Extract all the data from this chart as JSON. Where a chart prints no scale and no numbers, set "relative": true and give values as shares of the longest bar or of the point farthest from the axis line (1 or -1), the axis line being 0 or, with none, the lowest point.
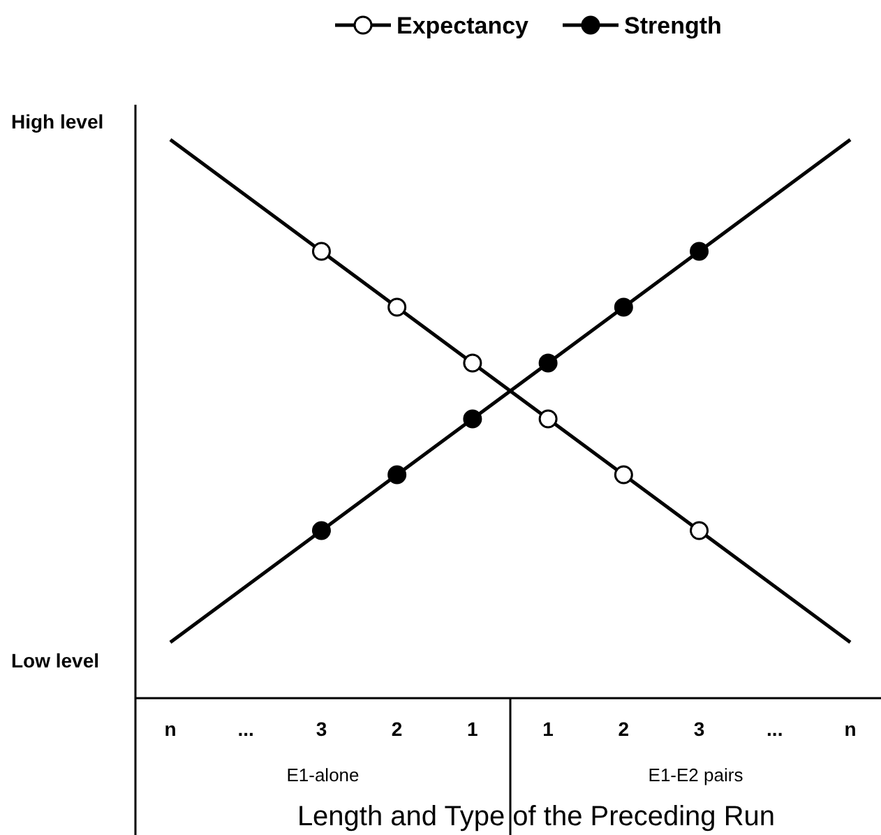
{
  "chart_data": {
    "type": "line",
    "xlabel": "Length and Type of the Preceding Run",
    "categories": [
      "n",
      "...",
      "3",
      "2",
      "1",
      "1",
      "2",
      "3",
      "...",
      "n"
    ],
    "series": [
      {
        "color": "#000000",
        "marker": "none",
        "values": [
          1,
          0.9,
          0.8,
          0.7,
          0.6,
          0.5,
          0.4,
          0.3,
          0.2,
          0.1
        ]
      },
      {
        "color": "#000000",
        "marker": "none",
        "values": [
          0.1,
          0.2,
          0.3,
          0.4,
          0.5,
          0.6,
          0.7,
          0.8,
          0.9,
          1
        ]
      },
      {
        "type": "scatter",
        "name": "Expectancy",
        "color": "#ffffff",
        "marker": "circle",
        "values": [
          null,
          null,
          0.8,
          0.7,
          0.6,
          0.5,
          0.4,
          0.3,
          null,
          null
        ]
      },
      {
        "type": "scatter",
        "name": "Strength",
        "color": "#000000",
        "marker": "circle",
        "values": [
          null,
          null,
          0.3,
          0.4,
          0.5,
          0.6,
          0.7,
          0.8,
          null,
          null
        ]
      }
    ],
    "relative": true,
    "annotations": [
      "High level",
      "Low level",
      "E1-alone",
      "E1-E2 pairs"
    ],
    "legend": "top"
  }
}
